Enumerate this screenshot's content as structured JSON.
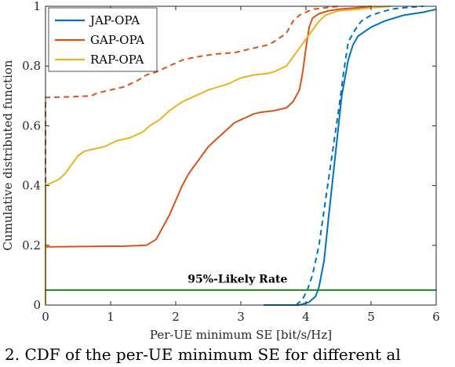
{
  "caption": "2. CDF of the per-UE minimum SE for different al",
  "chart_data": {
    "type": "line",
    "title": "",
    "xlabel": "Per-UE minimum SE [bit/s/Hz]",
    "ylabel": "Cumulative distributed function",
    "xlim": [
      0,
      6
    ],
    "ylim": [
      0,
      1
    ],
    "xticks": [
      0,
      1,
      2,
      3,
      4,
      5,
      6
    ],
    "yticks": [
      0,
      0.2,
      0.4,
      0.6,
      0.8,
      1
    ],
    "xtick_labels": [
      "0",
      "1",
      "2",
      "3",
      "4",
      "5",
      "6"
    ],
    "ytick_labels": [
      "0",
      "0.2",
      "0.4",
      "0.6",
      "0.8",
      "1"
    ],
    "grid": false,
    "legend_position": "top-left",
    "legend": [
      "JAP-OPA",
      "GAP-OPA",
      "RAP-OPA"
    ],
    "series": [
      {
        "name": "JAP-OPA",
        "color": "#0072BD",
        "style": "solid",
        "x": [
          3.35,
          3.9,
          4.05,
          4.15,
          4.2,
          4.28,
          4.35,
          4.45,
          4.55,
          4.65,
          4.72,
          4.8,
          5.0,
          5.2,
          5.5,
          5.8,
          6.0
        ],
        "y": [
          0.0,
          0.0,
          0.01,
          0.03,
          0.06,
          0.15,
          0.3,
          0.5,
          0.7,
          0.82,
          0.87,
          0.9,
          0.93,
          0.95,
          0.97,
          0.98,
          0.99
        ]
      },
      {
        "name": "JAP-OPA",
        "color": "#0072BD",
        "style": "dashed",
        "x": [
          3.85,
          3.95,
          4.02,
          4.1,
          4.2,
          4.3,
          4.4,
          4.5,
          4.58,
          4.65,
          4.75,
          4.85,
          5.0,
          5.15,
          5.3,
          5.5,
          5.8
        ],
        "y": [
          0.0,
          0.02,
          0.05,
          0.1,
          0.2,
          0.35,
          0.5,
          0.65,
          0.78,
          0.88,
          0.92,
          0.95,
          0.97,
          0.98,
          0.99,
          0.995,
          1.0
        ]
      },
      {
        "name": "GAP-OPA",
        "color": "#D95319",
        "style": "solid",
        "x": [
          0.0,
          0.0,
          0.05,
          1.2,
          1.55,
          1.7,
          1.8,
          1.9,
          2.0,
          2.1,
          2.2,
          2.3,
          2.4,
          2.5,
          2.6,
          2.7,
          2.8,
          2.9,
          3.0,
          3.1,
          3.2,
          3.3,
          3.5,
          3.7,
          3.8,
          3.9,
          3.95,
          4.0,
          4.05,
          4.1,
          4.2,
          4.35,
          4.5,
          4.8,
          5.0
        ],
        "y": [
          0.0,
          0.195,
          0.195,
          0.197,
          0.2,
          0.22,
          0.26,
          0.3,
          0.35,
          0.4,
          0.44,
          0.47,
          0.5,
          0.53,
          0.55,
          0.57,
          0.59,
          0.61,
          0.62,
          0.63,
          0.64,
          0.645,
          0.65,
          0.66,
          0.68,
          0.72,
          0.78,
          0.86,
          0.93,
          0.96,
          0.975,
          0.985,
          0.99,
          0.995,
          1.0
        ]
      },
      {
        "name": "GAP-OPA",
        "color": "#D95319",
        "style": "dashed",
        "x": [
          0.0,
          0.0,
          0.05,
          0.4,
          0.7,
          0.8,
          1.2,
          1.4,
          1.55,
          1.7,
          1.9,
          2.1,
          2.3,
          2.6,
          2.9,
          3.0,
          3.2,
          3.4,
          3.5,
          3.6,
          3.7,
          3.75,
          3.8,
          3.85,
          3.9,
          3.95,
          4.0,
          4.05,
          4.1,
          4.3,
          4.5
        ],
        "y": [
          0.0,
          0.695,
          0.695,
          0.697,
          0.7,
          0.71,
          0.73,
          0.75,
          0.77,
          0.78,
          0.8,
          0.82,
          0.83,
          0.84,
          0.845,
          0.85,
          0.86,
          0.87,
          0.88,
          0.895,
          0.91,
          0.93,
          0.95,
          0.96,
          0.97,
          0.975,
          0.98,
          0.985,
          0.99,
          0.995,
          1.0
        ]
      },
      {
        "name": "RAP-OPA",
        "color": "#EDB120",
        "style": "solid",
        "x": [
          0.0,
          0.0,
          0.05,
          0.2,
          0.3,
          0.4,
          0.5,
          0.6,
          0.7,
          0.8,
          0.9,
          1.0,
          1.1,
          1.3,
          1.5,
          1.6,
          1.75,
          1.9,
          2.1,
          2.3,
          2.5,
          2.8,
          3.0,
          3.2,
          3.4,
          3.5,
          3.6,
          3.7,
          3.8,
          3.9,
          4.0,
          4.1,
          4.2,
          4.3,
          4.5,
          4.8,
          5.0,
          5.2,
          5.3
        ],
        "y": [
          0.0,
          0.4,
          0.405,
          0.42,
          0.44,
          0.47,
          0.5,
          0.515,
          0.52,
          0.525,
          0.53,
          0.54,
          0.55,
          0.56,
          0.58,
          0.6,
          0.62,
          0.65,
          0.68,
          0.7,
          0.72,
          0.74,
          0.76,
          0.77,
          0.775,
          0.78,
          0.79,
          0.8,
          0.83,
          0.86,
          0.89,
          0.92,
          0.95,
          0.97,
          0.985,
          0.99,
          0.995,
          0.998,
          1.0
        ]
      },
      {
        "name": "95%-Likely Rate",
        "color": "#1A8A1A",
        "style": "solid",
        "x": [
          0,
          6
        ],
        "y": [
          0.05,
          0.05
        ]
      }
    ],
    "annotations": [
      {
        "text": "95%-Likely Rate",
        "x": 2.95,
        "y": 0.075
      }
    ]
  }
}
